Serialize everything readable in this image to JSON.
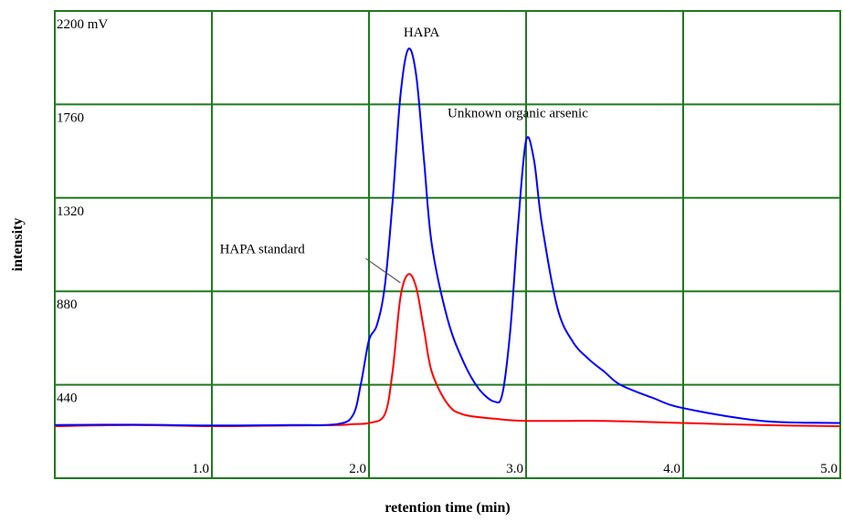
{
  "chart_data": {
    "type": "line",
    "xlabel": "retention time (min)",
    "ylabel": "intensity",
    "xlim": [
      0,
      5.0
    ],
    "ylim": [
      0,
      2200
    ],
    "x_ticks": [
      {
        "value": 1.0,
        "label": "1.0"
      },
      {
        "value": 2.0,
        "label": "2.0"
      },
      {
        "value": 3.0,
        "label": "3.0"
      },
      {
        "value": 4.0,
        "label": "4.0"
      },
      {
        "value": 5.0,
        "label": "5.0"
      }
    ],
    "y_ticks": [
      {
        "value": 440,
        "label": "440"
      },
      {
        "value": 880,
        "label": "880"
      },
      {
        "value": 1320,
        "label": "1320"
      },
      {
        "value": 1760,
        "label": "1760"
      },
      {
        "value": 2200,
        "label": "2200 mV"
      }
    ],
    "grid": true,
    "grid_color": "#1f7a1f",
    "series": [
      {
        "color": "#0000ff",
        "x": [
          0,
          0.5,
          1.0,
          1.5,
          1.8,
          1.9,
          1.95,
          2.0,
          2.05,
          2.1,
          2.15,
          2.2,
          2.25,
          2.3,
          2.35,
          2.4,
          2.5,
          2.6,
          2.7,
          2.8,
          2.85,
          2.9,
          2.95,
          3.0,
          3.05,
          3.1,
          3.2,
          3.3,
          3.4,
          3.5,
          3.6,
          3.8,
          4.0,
          4.5,
          5.0
        ],
        "y": [
          250,
          252,
          248,
          250,
          255,
          300,
          450,
          650,
          720,
          900,
          1300,
          1800,
          2020,
          1900,
          1500,
          1100,
          750,
          550,
          420,
          360,
          400,
          700,
          1200,
          1590,
          1500,
          1200,
          800,
          640,
          560,
          500,
          440,
          380,
          330,
          270,
          260
        ]
      },
      {
        "color": "#ff0000",
        "x": [
          0,
          0.5,
          1.0,
          1.5,
          1.8,
          1.9,
          2.0,
          2.1,
          2.15,
          2.2,
          2.25,
          2.3,
          2.35,
          2.4,
          2.5,
          2.6,
          2.8,
          3.0,
          3.5,
          4.0,
          4.5,
          5.0
        ],
        "y": [
          245,
          250,
          245,
          248,
          250,
          255,
          260,
          300,
          500,
          850,
          960,
          900,
          700,
          500,
          350,
          300,
          280,
          270,
          270,
          260,
          250,
          245
        ]
      }
    ],
    "annotations": [
      {
        "text": "HAPA",
        "x": 2.22,
        "y": 2080
      },
      {
        "text": "Unknown organic arsenic",
        "x": 2.5,
        "y": 1700
      },
      {
        "text": "HAPA standard",
        "x": 1.05,
        "y": 1060,
        "arrow_to": [
          2.2,
          920
        ]
      }
    ]
  }
}
